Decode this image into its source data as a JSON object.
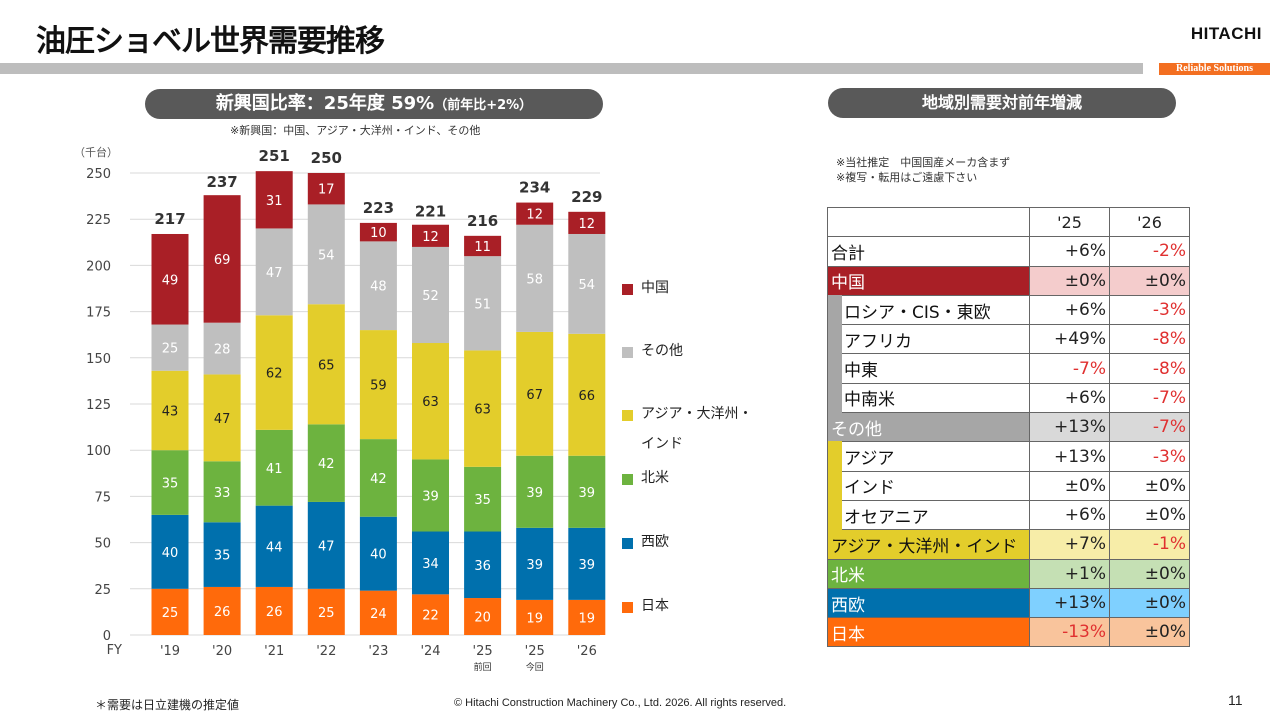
{
  "header": {
    "title": "油圧ショベル世界需要推移",
    "logo": "HITACHI",
    "tagline": "Reliable Solutions"
  },
  "left_panel": {
    "pill_main": "新興国比率：25年度 59%",
    "pill_sub": "（前年比+2%）",
    "subnote": "※新興国：中国、アジア・大洋州・インド、その他"
  },
  "right_panel": {
    "pill": "地域別需要対前年増減",
    "notes": [
      "※当社推定　中国国産メーカ含まず",
      "※複写・転用はご遠慮下さい"
    ]
  },
  "colors": {
    "china": "#a91f26",
    "others": "#bfbfbf",
    "asia": "#e3cd2b",
    "north_america": "#6db33f",
    "west_europe": "#0070ad",
    "japan": "#ff6a0b"
  },
  "chart_data": {
    "type": "bar",
    "stacked": true,
    "title": "",
    "ylabel": "（千台）",
    "xlabel": "FY",
    "ylim": [
      0,
      250
    ],
    "yticks": [
      0,
      25,
      50,
      75,
      100,
      125,
      150,
      175,
      200,
      225,
      250
    ],
    "grid": true,
    "legend_position": "right",
    "categories": [
      "'19",
      "'20",
      "'21",
      "'22",
      "'23",
      "'24",
      "'25",
      "'25",
      "'26"
    ],
    "category_sublabels": [
      "",
      "",
      "",
      "",
      "",
      "",
      "前回",
      "今回",
      ""
    ],
    "totals": [
      217,
      237,
      251,
      250,
      223,
      221,
      216,
      234,
      229
    ],
    "series": [
      {
        "name": "日本",
        "key": "japan",
        "values": [
          25,
          26,
          26,
          25,
          24,
          22,
          20,
          19,
          19
        ],
        "label_color": "#ffffff"
      },
      {
        "name": "西欧",
        "key": "west_europe",
        "values": [
          40,
          35,
          44,
          47,
          40,
          34,
          36,
          39,
          39
        ],
        "label_color": "#ffffff"
      },
      {
        "name": "北米",
        "key": "north_america",
        "values": [
          35,
          33,
          41,
          42,
          42,
          39,
          35,
          39,
          39
        ],
        "label_color": "#ffffff"
      },
      {
        "name": "アジア・大洋州・インド",
        "key": "asia",
        "values": [
          43,
          47,
          62,
          65,
          59,
          63,
          63,
          67,
          66
        ],
        "label_color": "#222222"
      },
      {
        "name": "その他",
        "key": "others",
        "values": [
          25,
          28,
          47,
          54,
          48,
          52,
          51,
          58,
          54
        ],
        "label_color": "#ffffff"
      },
      {
        "name": "中国",
        "key": "china",
        "values": [
          49,
          69,
          31,
          17,
          10,
          12,
          11,
          12,
          12
        ],
        "label_color": "#ffffff"
      }
    ],
    "legend": [
      {
        "key": "china",
        "label": "中国"
      },
      {
        "key": "others",
        "label": "その他"
      },
      {
        "key": "asia",
        "label": "アジア・大洋州・",
        "label2": "インド"
      },
      {
        "key": "north_america",
        "label": "北米"
      },
      {
        "key": "west_europe",
        "label": "西欧"
      },
      {
        "key": "japan",
        "label": "日本"
      }
    ]
  },
  "table": {
    "headers": [
      "",
      "'25",
      "'26"
    ],
    "rows": [
      {
        "label": "合計",
        "v25": "+6%",
        "v26": "-2%",
        "style": "total"
      },
      {
        "label": "中国",
        "v25": "±0%",
        "v26": "±0%",
        "style": "china"
      },
      {
        "label": "ロシア・CIS・東欧",
        "v25": "+6%",
        "v26": "-3%",
        "style": "sub-others"
      },
      {
        "label": "アフリカ",
        "v25": "+49%",
        "v26": "-8%",
        "style": "sub-others"
      },
      {
        "label": "中東",
        "v25": "-7%",
        "v26": "-8%",
        "style": "sub-others"
      },
      {
        "label": "中南米",
        "v25": "+6%",
        "v26": "-7%",
        "style": "sub-others"
      },
      {
        "label": "その他",
        "v25": "+13%",
        "v26": "-7%",
        "style": "others"
      },
      {
        "label": "アジア",
        "v25": "+13%",
        "v26": "-3%",
        "style": "sub-asia"
      },
      {
        "label": "インド",
        "v25": "±0%",
        "v26": "±0%",
        "style": "sub-asia"
      },
      {
        "label": "オセアニア",
        "v25": "+6%",
        "v26": "±0%",
        "style": "sub-asia"
      },
      {
        "label": "アジア・大洋州・インド",
        "v25": "+7%",
        "v26": "-1%",
        "style": "asia"
      },
      {
        "label": "北米",
        "v25": "+1%",
        "v26": "±0%",
        "style": "na"
      },
      {
        "label": "西欧",
        "v25": "+13%",
        "v26": "±0%",
        "style": "we"
      },
      {
        "label": "日本",
        "v25": "-13%",
        "v26": "±0%",
        "style": "jp"
      }
    ]
  },
  "footer": {
    "note": "＊需要は日立建機の推定値",
    "copyright": "© Hitachi Construction Machinery Co., Ltd. 2026. All rights reserved.",
    "page_number": "11"
  }
}
